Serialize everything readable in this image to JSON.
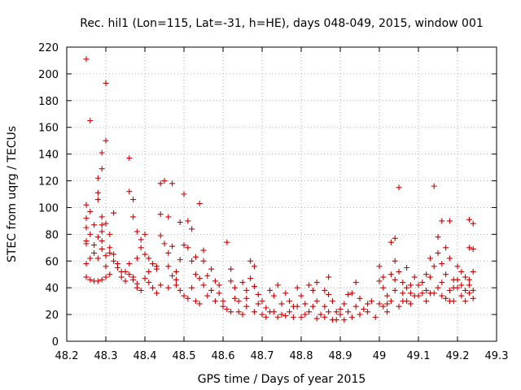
{
  "chart_data": {
    "type": "scatter",
    "title": "Rec. hil1 (Lon=115, Lat=-31, h=HE), days 048-049, 2015, window 001",
    "xlabel": "GPS time / Days of year 2015",
    "ylabel": "STEC from uqrg / TECUs",
    "xlim": [
      48.2,
      49.3
    ],
    "ylim": [
      0,
      220
    ],
    "xticks": [
      "48.2",
      "48.3",
      "48.4",
      "48.5",
      "48.6",
      "48.7",
      "48.8",
      "48.9",
      "49",
      "49.1",
      "49.2",
      "49.3"
    ],
    "yticks": [
      "0",
      "20",
      "40",
      "60",
      "80",
      "100",
      "120",
      "140",
      "160",
      "180",
      "200",
      "220"
    ],
    "grid": true,
    "marker": "plus",
    "color": "#cc0000",
    "points": [
      [
        48.25,
        211
      ],
      [
        48.26,
        165
      ],
      [
        48.3,
        193
      ],
      [
        48.3,
        150
      ],
      [
        48.29,
        141
      ],
      [
        48.29,
        129
      ],
      [
        48.28,
        122
      ],
      [
        48.28,
        111
      ],
      [
        48.28,
        106
      ],
      [
        48.25,
        102
      ],
      [
        48.26,
        97
      ],
      [
        48.25,
        92
      ],
      [
        48.27,
        87
      ],
      [
        48.25,
        85
      ],
      [
        48.25,
        75
      ],
      [
        48.25,
        73
      ],
      [
        48.26,
        80
      ],
      [
        48.27,
        66
      ],
      [
        48.25,
        58
      ],
      [
        48.25,
        48
      ],
      [
        48.26,
        46
      ],
      [
        48.27,
        45
      ],
      [
        48.28,
        45
      ],
      [
        48.29,
        46
      ],
      [
        48.3,
        48
      ],
      [
        48.28,
        62
      ],
      [
        48.29,
        69
      ],
      [
        48.29,
        75
      ],
      [
        48.29,
        82
      ],
      [
        48.29,
        87
      ],
      [
        48.29,
        93
      ],
      [
        48.3,
        88
      ],
      [
        48.31,
        80
      ],
      [
        48.31,
        70
      ],
      [
        48.3,
        64
      ],
      [
        48.3,
        56
      ],
      [
        48.31,
        50
      ],
      [
        48.32,
        96
      ],
      [
        48.32,
        65
      ],
      [
        48.32,
        60
      ],
      [
        48.33,
        55
      ],
      [
        48.34,
        52
      ],
      [
        48.34,
        48
      ],
      [
        48.35,
        45
      ],
      [
        48.36,
        137
      ],
      [
        48.36,
        112
      ],
      [
        48.37,
        106
      ],
      [
        48.37,
        93
      ],
      [
        48.36,
        58
      ],
      [
        48.36,
        50
      ],
      [
        48.37,
        48
      ],
      [
        48.37,
        46
      ],
      [
        48.38,
        43
      ],
      [
        48.38,
        40
      ],
      [
        48.39,
        38
      ],
      [
        48.38,
        82
      ],
      [
        48.39,
        76
      ],
      [
        48.39,
        70
      ],
      [
        48.4,
        80
      ],
      [
        48.4,
        65
      ],
      [
        48.41,
        62
      ],
      [
        48.41,
        52
      ],
      [
        48.42,
        58
      ],
      [
        48.42,
        40
      ],
      [
        48.43,
        56
      ],
      [
        48.43,
        54
      ],
      [
        48.43,
        36
      ],
      [
        48.44,
        118
      ],
      [
        48.44,
        95
      ],
      [
        48.44,
        79
      ],
      [
        48.45,
        120
      ],
      [
        48.46,
        93
      ],
      [
        48.45,
        73
      ],
      [
        48.46,
        66
      ],
      [
        48.46,
        56
      ],
      [
        48.47,
        118
      ],
      [
        48.47,
        71
      ],
      [
        48.47,
        49
      ],
      [
        48.48,
        46
      ],
      [
        48.48,
        42
      ],
      [
        48.49,
        89
      ],
      [
        48.49,
        61
      ],
      [
        48.5,
        110
      ],
      [
        48.5,
        72
      ],
      [
        48.51,
        90
      ],
      [
        48.51,
        70
      ],
      [
        48.52,
        84
      ],
      [
        48.52,
        60
      ],
      [
        48.53,
        63
      ],
      [
        48.53,
        50
      ],
      [
        48.54,
        103
      ],
      [
        48.54,
        47
      ],
      [
        48.55,
        60
      ],
      [
        48.55,
        68
      ],
      [
        48.55,
        42
      ],
      [
        48.56,
        49
      ],
      [
        48.57,
        54
      ],
      [
        48.57,
        38
      ],
      [
        48.58,
        45
      ],
      [
        48.59,
        42
      ],
      [
        48.6,
        30
      ],
      [
        48.61,
        74
      ],
      [
        48.62,
        54
      ],
      [
        48.62,
        45
      ],
      [
        48.63,
        40
      ],
      [
        48.64,
        30
      ],
      [
        48.65,
        44
      ],
      [
        48.66,
        38
      ],
      [
        48.66,
        26
      ],
      [
        48.67,
        60
      ],
      [
        48.67,
        47
      ],
      [
        48.68,
        56
      ],
      [
        48.68,
        41
      ],
      [
        48.69,
        35
      ],
      [
        48.69,
        28
      ],
      [
        48.7,
        30
      ],
      [
        48.71,
        25
      ],
      [
        48.72,
        38
      ],
      [
        48.73,
        34
      ],
      [
        48.73,
        22
      ],
      [
        48.74,
        42
      ],
      [
        48.75,
        28
      ],
      [
        48.75,
        20
      ],
      [
        48.76,
        36
      ],
      [
        48.77,
        30
      ],
      [
        48.78,
        26
      ],
      [
        48.79,
        40
      ],
      [
        48.8,
        34
      ],
      [
        48.8,
        18
      ],
      [
        48.81,
        28
      ],
      [
        48.82,
        42
      ],
      [
        48.82,
        22
      ],
      [
        48.83,
        38
      ],
      [
        48.84,
        44
      ],
      [
        48.84,
        30
      ],
      [
        48.85,
        20
      ],
      [
        48.86,
        38
      ],
      [
        48.86,
        26
      ],
      [
        48.87,
        48
      ],
      [
        48.87,
        35
      ],
      [
        48.88,
        30
      ],
      [
        48.89,
        22
      ],
      [
        48.89,
        16
      ],
      [
        48.9,
        20
      ],
      [
        48.91,
        28
      ],
      [
        48.91,
        16
      ],
      [
        48.92,
        35
      ],
      [
        48.93,
        36
      ],
      [
        48.94,
        44
      ],
      [
        48.94,
        26
      ],
      [
        48.95,
        32
      ],
      [
        48.96,
        24
      ],
      [
        48.97,
        28
      ],
      [
        48.98,
        30
      ],
      [
        48.99,
        18
      ],
      [
        49.0,
        56
      ],
      [
        49.0,
        45
      ],
      [
        49.01,
        48
      ],
      [
        49.01,
        40
      ],
      [
        49.02,
        28
      ],
      [
        49.02,
        22
      ],
      [
        49.03,
        74
      ],
      [
        49.03,
        50
      ],
      [
        49.04,
        77
      ],
      [
        49.04,
        60
      ],
      [
        49.04,
        38
      ],
      [
        49.05,
        115
      ],
      [
        49.05,
        52
      ],
      [
        49.05,
        26
      ],
      [
        49.06,
        44
      ],
      [
        49.06,
        30
      ],
      [
        49.07,
        55
      ],
      [
        49.07,
        40
      ],
      [
        49.08,
        36
      ],
      [
        49.08,
        28
      ],
      [
        49.09,
        48
      ],
      [
        49.1,
        34
      ],
      [
        49.11,
        44
      ],
      [
        49.12,
        38
      ],
      [
        49.12,
        30
      ],
      [
        49.13,
        62
      ],
      [
        49.13,
        48
      ],
      [
        49.14,
        116
      ],
      [
        49.14,
        56
      ],
      [
        49.14,
        36
      ],
      [
        49.15,
        78
      ],
      [
        49.15,
        66
      ],
      [
        49.16,
        90
      ],
      [
        49.16,
        58
      ],
      [
        49.16,
        44
      ],
      [
        49.17,
        70
      ],
      [
        49.17,
        50
      ],
      [
        49.17,
        32
      ],
      [
        49.18,
        90
      ],
      [
        49.18,
        62
      ],
      [
        49.18,
        38
      ],
      [
        49.19,
        46
      ],
      [
        49.19,
        30
      ],
      [
        49.2,
        56
      ],
      [
        49.2,
        40
      ],
      [
        49.21,
        52
      ],
      [
        49.21,
        34
      ],
      [
        49.22,
        30
      ],
      [
        49.22,
        48
      ],
      [
        49.23,
        91
      ],
      [
        49.23,
        70
      ],
      [
        49.23,
        42
      ],
      [
        49.24,
        88
      ],
      [
        49.24,
        69
      ],
      [
        49.24,
        52
      ],
      [
        49.24,
        38
      ],
      [
        49.24,
        32
      ],
      [
        48.26,
        62
      ],
      [
        48.27,
        72
      ],
      [
        48.28,
        78
      ],
      [
        48.31,
        66
      ],
      [
        48.33,
        58
      ],
      [
        48.35,
        52
      ],
      [
        48.38,
        62
      ],
      [
        48.4,
        47
      ],
      [
        48.41,
        44
      ],
      [
        48.44,
        42
      ],
      [
        48.46,
        40
      ],
      [
        48.48,
        52
      ],
      [
        48.49,
        38
      ],
      [
        48.5,
        34
      ],
      [
        48.51,
        32
      ],
      [
        48.52,
        40
      ],
      [
        48.53,
        30
      ],
      [
        48.54,
        28
      ],
      [
        48.56,
        34
      ],
      [
        48.58,
        30
      ],
      [
        48.59,
        36
      ],
      [
        48.6,
        26
      ],
      [
        48.61,
        24
      ],
      [
        48.62,
        22
      ],
      [
        48.63,
        32
      ],
      [
        48.64,
        22
      ],
      [
        48.65,
        20
      ],
      [
        48.66,
        32
      ],
      [
        48.68,
        22
      ],
      [
        48.7,
        20
      ],
      [
        48.71,
        18
      ],
      [
        48.72,
        22
      ],
      [
        48.74,
        18
      ],
      [
        48.76,
        19
      ],
      [
        48.77,
        22
      ],
      [
        48.78,
        18
      ],
      [
        48.79,
        26
      ],
      [
        48.81,
        20
      ],
      [
        48.83,
        26
      ],
      [
        48.84,
        17
      ],
      [
        48.86,
        18
      ],
      [
        48.87,
        22
      ],
      [
        48.88,
        16
      ],
      [
        48.9,
        24
      ],
      [
        48.92,
        22
      ],
      [
        48.93,
        18
      ],
      [
        48.95,
        20
      ],
      [
        48.97,
        22
      ],
      [
        49.0,
        28
      ],
      [
        49.01,
        26
      ],
      [
        49.02,
        34
      ],
      [
        49.03,
        30
      ],
      [
        49.04,
        46
      ],
      [
        49.06,
        36
      ],
      [
        49.07,
        30
      ],
      [
        49.08,
        42
      ],
      [
        49.09,
        34
      ],
      [
        49.1,
        42
      ],
      [
        49.11,
        36
      ],
      [
        49.12,
        50
      ],
      [
        49.13,
        36
      ],
      [
        49.15,
        40
      ],
      [
        49.16,
        34
      ],
      [
        49.18,
        30
      ],
      [
        49.19,
        40
      ],
      [
        49.2,
        46
      ],
      [
        49.21,
        42
      ],
      [
        49.22,
        38
      ],
      [
        49.23,
        46
      ],
      [
        49.23,
        36
      ]
    ]
  }
}
